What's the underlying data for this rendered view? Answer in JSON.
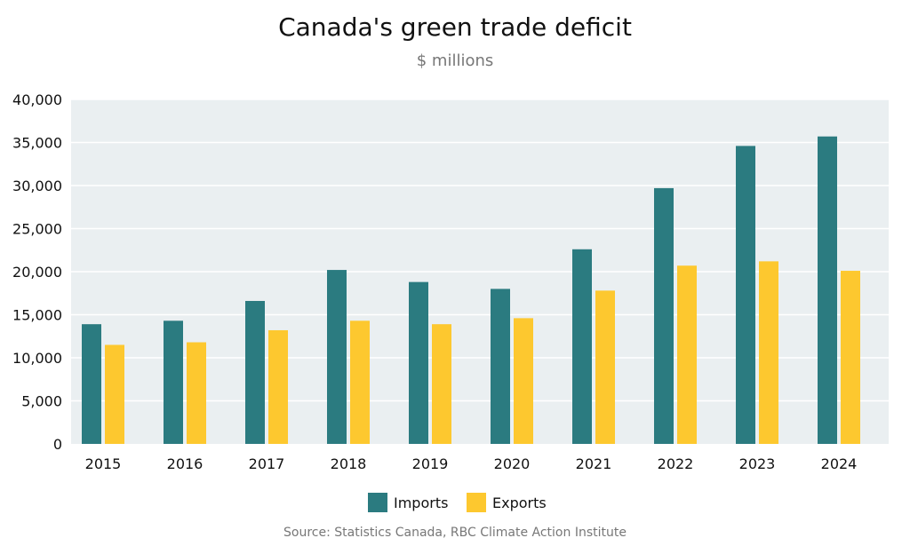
{
  "chart_data": {
    "type": "bar",
    "title": "Canada's green trade deficit",
    "subtitle": "$ millions",
    "source": "Source: Statistics Canada, RBC Climate Action Institute",
    "categories": [
      "2015",
      "2016",
      "2017",
      "2018",
      "2019",
      "2020",
      "2021",
      "2022",
      "2023",
      "2024"
    ],
    "series": [
      {
        "name": "Imports",
        "color": "#2b7b80",
        "values": [
          13900,
          14300,
          16600,
          20200,
          18800,
          18000,
          22600,
          29700,
          34600,
          35700
        ]
      },
      {
        "name": "Exports",
        "color": "#fdc82f",
        "values": [
          11500,
          11800,
          13200,
          14300,
          13900,
          14600,
          17800,
          20700,
          21200,
          20100
        ]
      }
    ],
    "ylim": [
      0,
      40000
    ],
    "yticks": [
      0,
      5000,
      10000,
      15000,
      20000,
      25000,
      30000,
      35000,
      40000
    ],
    "ytick_labels": [
      "0",
      "5,000",
      "10,000",
      "15,000",
      "20,000",
      "25,000",
      "30,000",
      "35,000",
      "40,000"
    ],
    "grid": true,
    "plot_background": "#eaeff1",
    "legend_position": "bottom"
  }
}
